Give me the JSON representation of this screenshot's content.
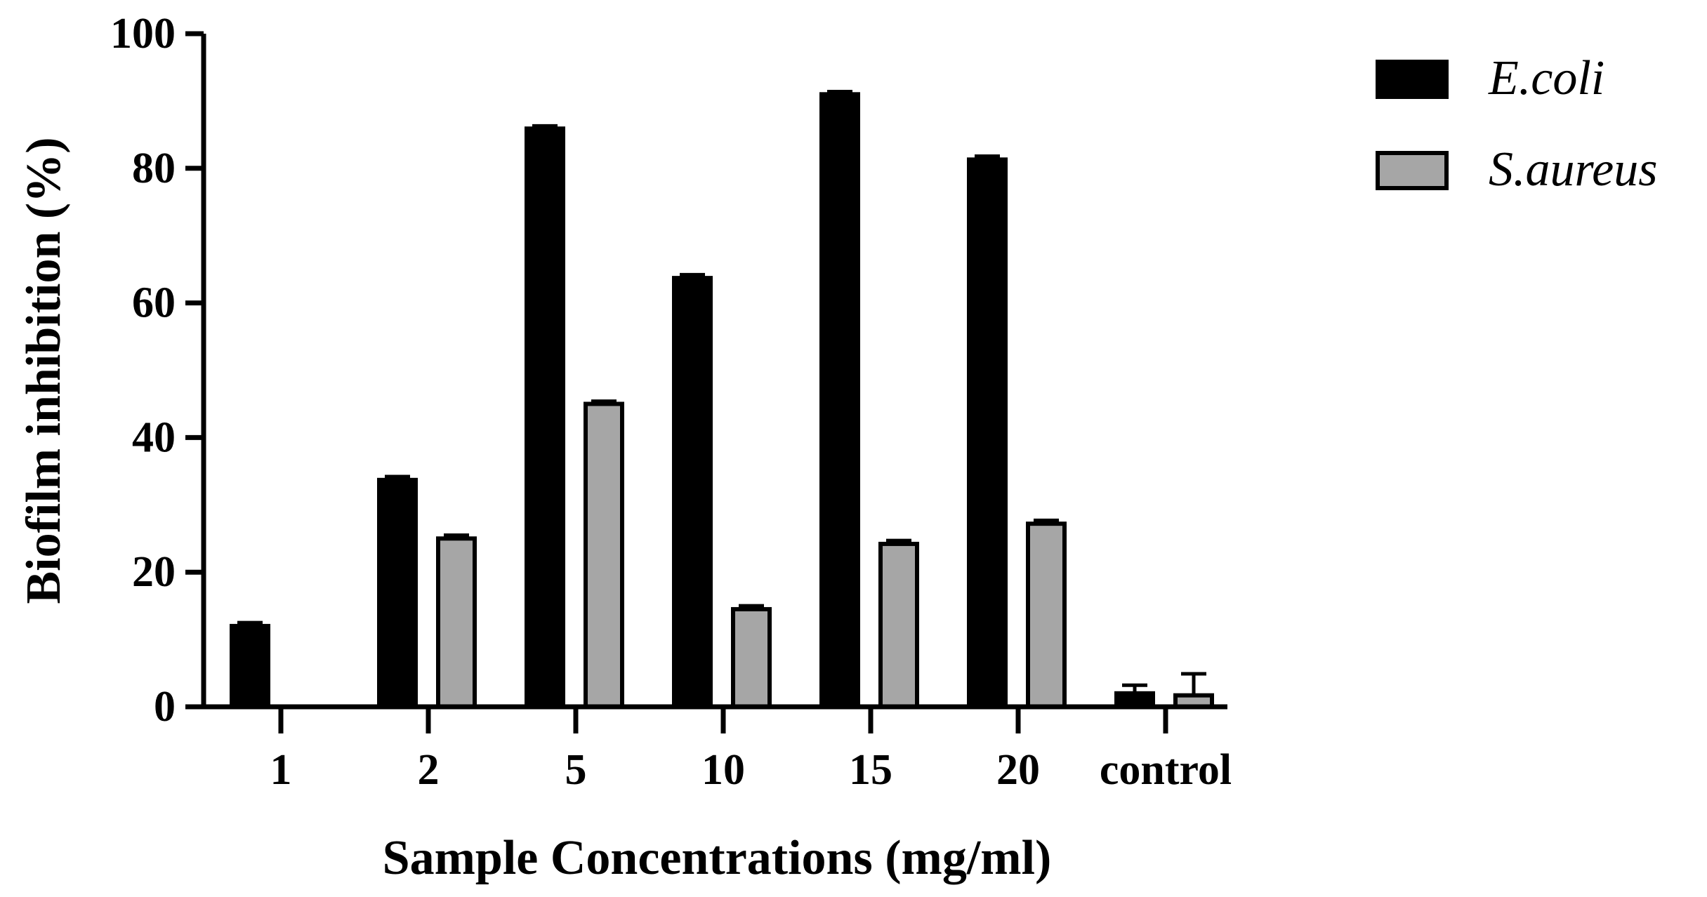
{
  "chart_data": {
    "type": "bar",
    "xlabel": "Sample Concentrations (mg/ml)",
    "ylabel": "Biofilm inhibition (%)",
    "ylim": [
      0,
      100
    ],
    "yticks": [
      "0",
      "20",
      "40",
      "60",
      "80",
      "100"
    ],
    "categories": [
      "1",
      "2",
      "5",
      "10",
      "15",
      "20",
      "control"
    ],
    "legend_position": "top-right",
    "grid": false,
    "series": [
      {
        "name": "E.coli",
        "color": "#000000",
        "values": [
          12,
          33.7,
          85.9,
          63.7,
          91,
          81.3,
          2
        ],
        "errors": [
          0.5,
          0.5,
          0.4,
          0.5,
          0.4,
          0.5,
          1.2
        ]
      },
      {
        "name": "S.aureus",
        "color": "#a6a6a6",
        "values": [
          0,
          25,
          45,
          14.5,
          24.2,
          27.2,
          1.7
        ],
        "errors": [
          0,
          0.5,
          0.4,
          0.5,
          0.5,
          0.5,
          3.2
        ]
      }
    ]
  }
}
